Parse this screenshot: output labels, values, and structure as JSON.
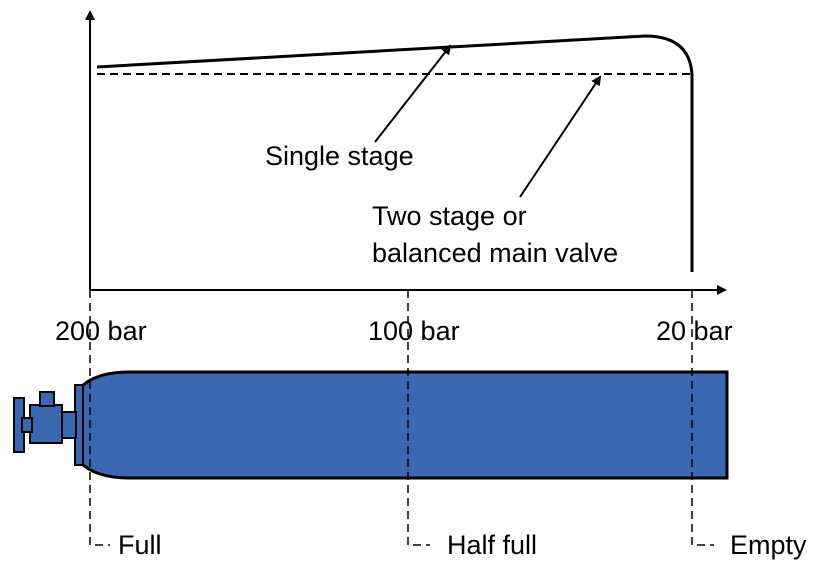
{
  "curves": {
    "single_stage": "Single stage",
    "two_stage": [
      "Two stage or",
      "balanced main valve"
    ]
  },
  "pressures": [
    "200 bar",
    "100 bar",
    "20 bar"
  ],
  "states": [
    "Full",
    "Half full",
    "Empty"
  ]
}
